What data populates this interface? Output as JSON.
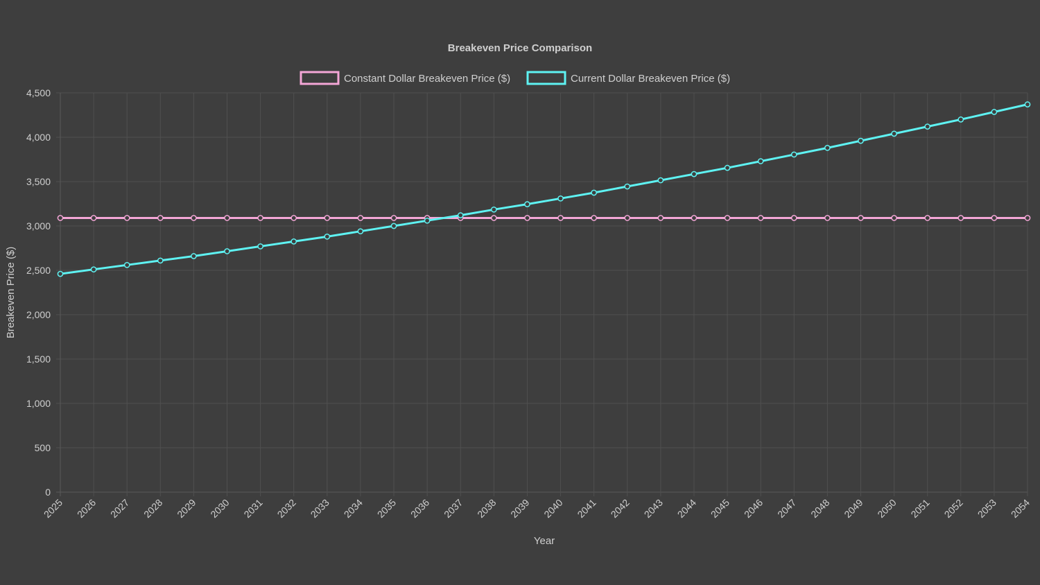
{
  "chart_data": {
    "type": "line",
    "title": "Breakeven Price Comparison",
    "xlabel": "Year",
    "ylabel": "Breakeven Price ($)",
    "ylim": [
      0,
      4500
    ],
    "yticks": [
      0,
      500,
      1000,
      1500,
      2000,
      2500,
      3000,
      3500,
      4000,
      4500
    ],
    "ytick_labels": [
      "0",
      "500",
      "1,000",
      "1,500",
      "2,000",
      "2,500",
      "3,000",
      "3,500",
      "4,000",
      "4,500"
    ],
    "grid": true,
    "legend_position": "top",
    "categories": [
      "2025",
      "2026",
      "2027",
      "2028",
      "2029",
      "2030",
      "2031",
      "2032",
      "2033",
      "2034",
      "2035",
      "2036",
      "2037",
      "2038",
      "2039",
      "2040",
      "2041",
      "2042",
      "2043",
      "2044",
      "2045",
      "2046",
      "2047",
      "2048",
      "2049",
      "2050",
      "2051",
      "2052",
      "2053",
      "2054"
    ],
    "series": [
      {
        "name": "Constant Dollar Breakeven Price ($)",
        "color": "#f4a6d7",
        "values": [
          3090,
          3090,
          3090,
          3090,
          3090,
          3090,
          3090,
          3090,
          3090,
          3090,
          3090,
          3090,
          3090,
          3090,
          3090,
          3090,
          3090,
          3090,
          3090,
          3090,
          3090,
          3090,
          3090,
          3090,
          3090,
          3090,
          3090,
          3090,
          3090,
          3090
        ]
      },
      {
        "name": "Current Dollar Breakeven Price ($)",
        "color": "#5ef2f2",
        "values": [
          2460,
          2510,
          2560,
          2610,
          2660,
          2715,
          2770,
          2825,
          2880,
          2940,
          3000,
          3060,
          3120,
          3185,
          3245,
          3310,
          3375,
          3445,
          3515,
          3585,
          3655,
          3730,
          3805,
          3880,
          3960,
          4040,
          4120,
          4200,
          4285,
          4370
        ]
      }
    ]
  }
}
